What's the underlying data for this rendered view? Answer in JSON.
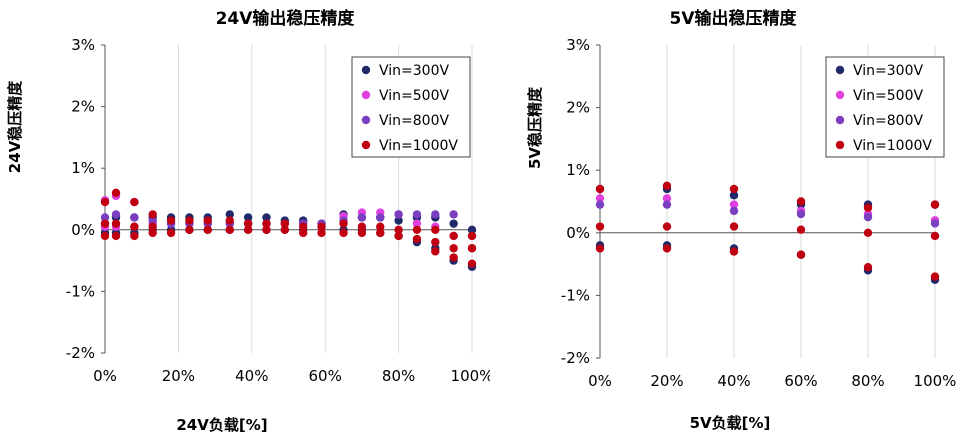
{
  "chart_data": [
    {
      "type": "scatter",
      "title": "24V输出稳压精度",
      "xlabel": "24V负载[%]",
      "ylabel": "24V稳压精度",
      "xlim": [
        0,
        100
      ],
      "ylim": [
        -2,
        3
      ],
      "xticks": [
        "0%",
        "20%",
        "40%",
        "60%",
        "80%",
        "100%"
      ],
      "yticks": [
        "3%",
        "2%",
        "1%",
        "0%",
        "-1%",
        "-2%"
      ],
      "legend_position": "top-right",
      "grid": "vertical",
      "series": [
        {
          "name": "Vin=300V",
          "color": "#1f2a6b",
          "x": [
            0,
            0,
            3,
            3,
            8,
            8,
            13,
            13,
            18,
            18,
            23,
            23,
            28,
            28,
            34,
            34,
            39,
            39,
            44,
            44,
            49,
            49,
            54,
            54,
            59,
            65,
            65,
            70,
            70,
            75,
            75,
            80,
            80,
            85,
            85,
            90,
            90,
            95,
            95,
            100,
            100
          ],
          "y": [
            0.1,
            -0.05,
            0.2,
            -0.05,
            0.2,
            -0.05,
            0.2,
            0.0,
            0.2,
            0.0,
            0.2,
            0.0,
            0.2,
            0.0,
            0.25,
            0.0,
            0.2,
            0.0,
            0.2,
            0.0,
            0.15,
            0.0,
            0.15,
            0.0,
            0.1,
            0.25,
            0.0,
            0.2,
            0.0,
            0.2,
            -0.05,
            0.15,
            -0.1,
            0.2,
            -0.2,
            0.2,
            -0.3,
            0.1,
            -0.5,
            0.0,
            -0.6
          ]
        },
        {
          "name": "Vin=500V",
          "color": "#e040e0",
          "x": [
            0,
            0,
            3,
            3,
            8,
            8,
            13,
            18,
            23,
            28,
            34,
            39,
            44,
            49,
            54,
            59,
            65,
            70,
            75,
            80,
            85,
            90,
            95,
            100
          ],
          "y": [
            0.48,
            0.05,
            0.55,
            0.05,
            0.45,
            0.05,
            0.1,
            0.1,
            0.1,
            0.1,
            0.1,
            0.1,
            0.1,
            0.1,
            0.1,
            0.05,
            0.22,
            0.28,
            0.28,
            0.25,
            0.1,
            0.05,
            -0.1,
            -0.3
          ]
        },
        {
          "name": "Vin=800V",
          "color": "#7a3fc0",
          "x": [
            0,
            3,
            8,
            13,
            18,
            23,
            28,
            34,
            39,
            44,
            49,
            54,
            59,
            65,
            70,
            75,
            80,
            85,
            90,
            95,
            100
          ],
          "y": [
            0.2,
            0.25,
            0.2,
            0.15,
            0.1,
            0.1,
            0.1,
            0.1,
            0.1,
            0.1,
            0.1,
            0.1,
            0.1,
            0.15,
            0.2,
            0.2,
            0.25,
            0.25,
            0.25,
            0.25,
            -0.1
          ]
        },
        {
          "name": "Vin=1000V",
          "color": "#c00010",
          "x": [
            0,
            0,
            0,
            3,
            3,
            3,
            8,
            8,
            8,
            13,
            13,
            13,
            18,
            18,
            23,
            23,
            28,
            28,
            34,
            34,
            39,
            39,
            44,
            44,
            49,
            49,
            54,
            54,
            59,
            59,
            65,
            65,
            70,
            70,
            75,
            75,
            80,
            80,
            85,
            85,
            90,
            90,
            90,
            95,
            95,
            95,
            100,
            100,
            100
          ],
          "y": [
            0.45,
            0.1,
            -0.1,
            0.6,
            0.1,
            -0.1,
            0.45,
            0.05,
            -0.1,
            0.25,
            0.05,
            -0.05,
            0.15,
            -0.05,
            0.15,
            0.0,
            0.15,
            0.0,
            0.15,
            0.0,
            0.1,
            0.0,
            0.1,
            0.0,
            0.1,
            0.0,
            0.05,
            -0.05,
            0.05,
            -0.05,
            0.1,
            -0.05,
            0.05,
            -0.05,
            0.05,
            -0.05,
            0.0,
            -0.1,
            0.0,
            -0.15,
            0.0,
            -0.2,
            -0.35,
            -0.1,
            -0.3,
            -0.45,
            -0.1,
            -0.3,
            -0.55
          ]
        }
      ]
    },
    {
      "type": "scatter",
      "title": "5V输出稳压精度",
      "xlabel": "5V负载[%]",
      "ylabel": "5V稳压精度",
      "xlim": [
        0,
        100
      ],
      "ylim": [
        -2,
        3
      ],
      "xticks": [
        "0%",
        "20%",
        "40%",
        "60%",
        "80%",
        "100%"
      ],
      "yticks": [
        "3%",
        "2%",
        "1%",
        "0%",
        "-1%",
        "-2%"
      ],
      "legend_position": "top-right",
      "grid": "vertical",
      "series": [
        {
          "name": "Vin=300V",
          "color": "#1f2a6b",
          "x": [
            0,
            0,
            20,
            20,
            40,
            40,
            60,
            60,
            80,
            80,
            100,
            100
          ],
          "y": [
            0.7,
            -0.2,
            0.7,
            -0.2,
            0.6,
            -0.25,
            0.45,
            -0.35,
            0.45,
            -0.6,
            0.45,
            -0.75
          ]
        },
        {
          "name": "Vin=500V",
          "color": "#e040e0",
          "x": [
            0,
            20,
            40,
            60,
            80,
            100
          ],
          "y": [
            0.55,
            0.55,
            0.45,
            0.35,
            0.3,
            0.2
          ]
        },
        {
          "name": "Vin=800V",
          "color": "#7a3fc0",
          "x": [
            0,
            20,
            40,
            60,
            80,
            100
          ],
          "y": [
            0.45,
            0.45,
            0.35,
            0.3,
            0.25,
            0.15
          ]
        },
        {
          "name": "Vin=1000V",
          "color": "#c00010",
          "x": [
            0,
            0,
            0,
            20,
            20,
            20,
            40,
            40,
            40,
            60,
            60,
            60,
            80,
            80,
            80,
            100,
            100,
            100
          ],
          "y": [
            0.7,
            0.1,
            -0.25,
            0.75,
            0.1,
            -0.25,
            0.7,
            0.1,
            -0.3,
            0.5,
            0.05,
            -0.35,
            0.4,
            0.0,
            -0.55,
            0.45,
            -0.05,
            -0.7
          ]
        }
      ]
    }
  ]
}
